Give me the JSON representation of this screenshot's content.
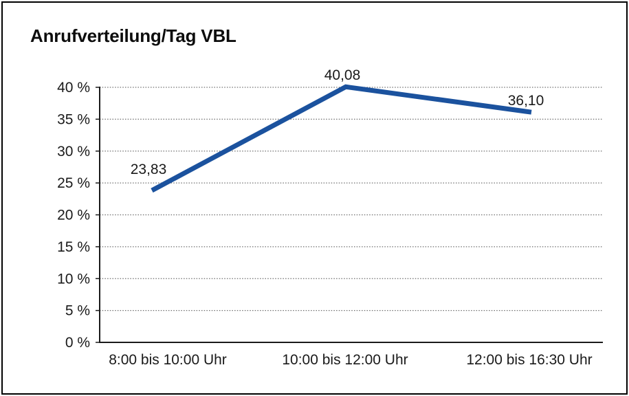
{
  "frame": {
    "background_color": "#ffffff",
    "border_color": "#000000"
  },
  "chart_data": {
    "type": "line",
    "title": "Anrufverteilung/Tag VBL",
    "categories": [
      "8:00 bis 10:00 Uhr",
      "10:00 bis 12:00 Uhr",
      "12:00 bis 16:30 Uhr"
    ],
    "values": [
      23.83,
      40.08,
      36.1
    ],
    "value_labels": [
      "23,83",
      "40,08",
      "36,10"
    ],
    "xlabel": "",
    "ylabel": "",
    "ylim": [
      0,
      40
    ],
    "ytick_step": 5,
    "ytick_labels": [
      "0 %",
      "5 %",
      "10 %",
      "15 %",
      "20 %",
      "25 %",
      "30 %",
      "35 %",
      "40 %"
    ],
    "grid": "dotted-horizontal",
    "legend": "none",
    "line_color": "#1B529E",
    "axis_color": "#1a1a1a",
    "grid_color": "#6e6e6e",
    "text_color": "#1a1a1a"
  }
}
